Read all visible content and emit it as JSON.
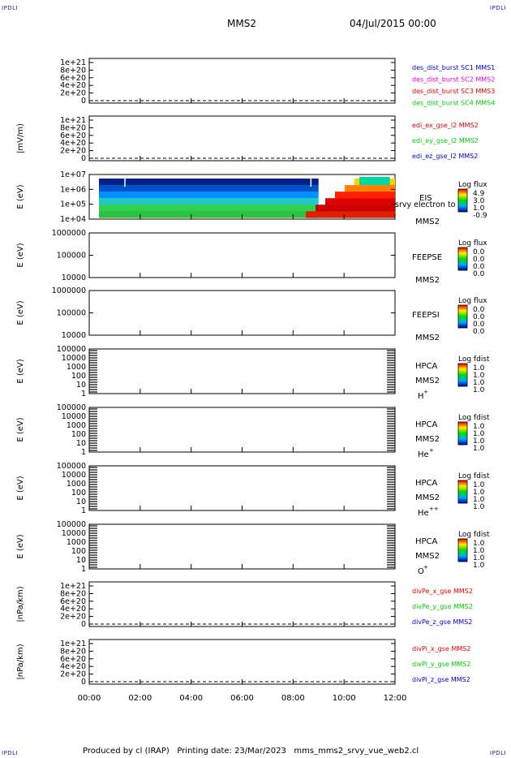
{
  "corners": {
    "tl": "IPDLI",
    "tr": "IPDLI",
    "bl": "IPDLI",
    "br": "IPDLI"
  },
  "header": {
    "mission": "MMS2",
    "datetime": "04/Jul/2015 00:00"
  },
  "footer": "Produced by cl (IRAP)   Printing date: 23/Mar/2023   mms_mms2_srvy_vue_web2.cl",
  "time_axis": {
    "ticks": [
      "00:00",
      "02:00",
      "04:00",
      "06:00",
      "08:00",
      "10:00",
      "12:00"
    ],
    "range_hours": [
      0,
      12
    ]
  },
  "colors": {
    "red": "#dd0000",
    "magenta": "#dd00dd",
    "green": "#00cc00",
    "blue": "#0000cc",
    "black": "#000000"
  },
  "chart_data": [
    {
      "type": "line",
      "ylabel": "",
      "yticks": [
        "1e+21",
        "8e+20",
        "6e+20",
        "4e+20",
        "2e+20",
        "0"
      ],
      "legend": [
        {
          "text": "des_dist_burst SC1 MMS1",
          "color": "#0000cc"
        },
        {
          "text": "des_dist_burst SC2 MMS2",
          "color": "#dd00dd"
        },
        {
          "text": "des_dist_burst SC3 MMS3",
          "color": "#dd0000"
        },
        {
          "text": "des_dist_burst SC4 MMS4",
          "color": "#00cc00"
        }
      ],
      "dashed_zero": true
    },
    {
      "type": "line",
      "ylabel": "|mV/m)",
      "yticks": [
        "1e+21",
        "8e+20",
        "6e+20",
        "4e+20",
        "2e+20",
        "0"
      ],
      "legend": [
        {
          "text": "edi_ex_gse_l2 MMS2",
          "color": "#dd0000"
        },
        {
          "text": "edi_ey_gse_l2 MMS2",
          "color": "#00cc00"
        },
        {
          "text": "edi_ez_gse_l2 MMS2",
          "color": "#0000cc"
        }
      ],
      "dashed_zero": true
    },
    {
      "type": "heatmap",
      "ylabel": "E (eV)",
      "yticks": [
        "1e+07",
        "1e+06",
        "1e+05",
        "1e+04"
      ],
      "labels": [
        "EIS",
        "MMS2"
      ],
      "overlay": "srvy electron to",
      "colorbar": {
        "title": "Log flux",
        "ticks": [
          "4.9",
          "3.0",
          "1.0",
          "-0.9"
        ]
      },
      "data_presence": "flux enhancement from ~08:30 to 12:00, strongest at low energies"
    },
    {
      "type": "heatmap",
      "ylabel": "E (eV)",
      "yticks": [
        "1000000",
        "100000",
        "10000"
      ],
      "labels": [
        "FEEPSE",
        "MMS2"
      ],
      "colorbar": {
        "title": "Log flux",
        "ticks": [
          "0.0",
          "0.0",
          "0.0",
          "0.0"
        ]
      }
    },
    {
      "type": "heatmap",
      "ylabel": "E (eV)",
      "yticks": [
        "1000000",
        "100000",
        "10000"
      ],
      "labels": [
        "FEEPSI",
        "MMS2"
      ],
      "colorbar": {
        "title": "Log flux",
        "ticks": [
          "0.0",
          "0.0",
          "0.0",
          "0.0"
        ]
      }
    },
    {
      "type": "heatmap",
      "ylabel": "E (eV)",
      "yticks": [
        "100000",
        "10000",
        "1000",
        "100",
        "10",
        "1"
      ],
      "labels": [
        "HPCA",
        "MMS2"
      ],
      "species": "H",
      "species_sup": "+",
      "colorbar": {
        "title": "Log fdist",
        "ticks": [
          "1.0",
          "1.0",
          "1.0",
          "1.0"
        ]
      }
    },
    {
      "type": "heatmap",
      "ylabel": "E (eV)",
      "yticks": [
        "100000",
        "10000",
        "1000",
        "100",
        "10",
        "1"
      ],
      "labels": [
        "HPCA",
        "MMS2"
      ],
      "species": "He",
      "species_sup": "+",
      "colorbar": {
        "title": "Log fdist",
        "ticks": [
          "1.0",
          "1.0",
          "1.0",
          "1.0"
        ]
      }
    },
    {
      "type": "heatmap",
      "ylabel": "E (eV)",
      "yticks": [
        "100000",
        "10000",
        "1000",
        "100",
        "10",
        "1"
      ],
      "labels": [
        "HPCA",
        "MMS2"
      ],
      "species": "He",
      "species_sup": "++",
      "colorbar": {
        "title": "Log fdist",
        "ticks": [
          "1.0",
          "1.0",
          "1.0",
          "1.0"
        ]
      }
    },
    {
      "type": "heatmap",
      "ylabel": "E (eV)",
      "yticks": [
        "100000",
        "10000",
        "1000",
        "100",
        "10",
        "1"
      ],
      "labels": [
        "HPCA",
        "MMS2"
      ],
      "species": "O",
      "species_sup": "+",
      "colorbar": {
        "title": "Log fdist",
        "ticks": [
          "1.0",
          "1.0",
          "1.0",
          "1.0"
        ]
      }
    },
    {
      "type": "line",
      "ylabel": "|nPa/km)",
      "yticks": [
        "1e+21",
        "8e+20",
        "6e+20",
        "4e+20",
        "2e+20",
        "0"
      ],
      "legend": [
        {
          "text": "divPe_x_gse MMS2",
          "color": "#dd0000"
        },
        {
          "text": "divPe_y_gse MMS2",
          "color": "#00cc00"
        },
        {
          "text": "divPe_z_gse MMS2",
          "color": "#0000cc"
        }
      ],
      "dashed_zero": true
    },
    {
      "type": "line",
      "ylabel": "|nPa/km)",
      "yticks": [
        "1e+21",
        "8e+20",
        "6e+20",
        "4e+20",
        "2e+20",
        "0"
      ],
      "legend": [
        {
          "text": "divPi_x_gse MMS2",
          "color": "#dd0000"
        },
        {
          "text": "divPi_y_gse MMS2",
          "color": "#00cc00"
        },
        {
          "text": "divPi_z_gse MMS2",
          "color": "#0000cc"
        }
      ],
      "dashed_zero": true
    }
  ]
}
